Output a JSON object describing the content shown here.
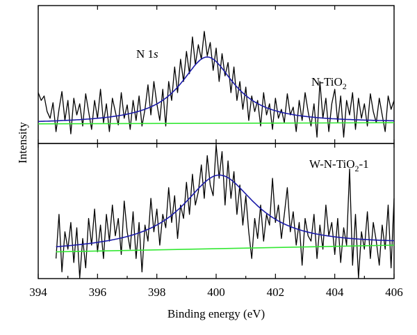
{
  "chart_data": {
    "type": "line",
    "xlabel": "Binding energy (eV)",
    "ylabel": "Intensity",
    "xlim": [
      394,
      406
    ],
    "x_ticks": [
      "394",
      "396",
      "398",
      "400",
      "402",
      "404",
      "406"
    ],
    "x_tick_values": [
      394,
      396,
      398,
      400,
      402,
      404,
      406
    ],
    "colors": {
      "raw": "#000000",
      "fit": "#1a1aa8",
      "baseline": "#33e833"
    },
    "panels": [
      {
        "label_main": "N-TiO",
        "label_sub": "2",
        "label_tail": "",
        "peak_label_main": "N 1",
        "peak_label_italic": "s",
        "ylim": [
          0,
          1
        ],
        "peak": {
          "center": 399.7,
          "fwhm": 2.2,
          "amplitude": 0.595
        },
        "baseline": {
          "x": [
            394,
            406
          ],
          "y": [
            0.17,
            0.18
          ]
        },
        "raw": {
          "x": [
            394.0,
            394.1,
            394.2,
            394.3,
            394.4,
            394.5,
            394.6,
            394.7,
            394.8,
            394.9,
            395.0,
            395.1,
            395.2,
            395.3,
            395.4,
            395.5,
            395.6,
            395.7,
            395.8,
            395.9,
            396.0,
            396.1,
            396.2,
            396.3,
            396.4,
            396.5,
            396.6,
            396.7,
            396.8,
            396.9,
            397.0,
            397.1,
            397.2,
            397.3,
            397.4,
            397.5,
            397.6,
            397.7,
            397.8,
            397.9,
            398.0,
            398.1,
            398.2,
            398.3,
            398.4,
            398.5,
            398.6,
            398.7,
            398.8,
            398.9,
            399.0,
            399.1,
            399.2,
            399.3,
            399.4,
            399.5,
            399.6,
            399.7,
            399.8,
            399.9,
            400.0,
            400.1,
            400.2,
            400.3,
            400.4,
            400.5,
            400.6,
            400.7,
            400.8,
            400.9,
            401.0,
            401.1,
            401.2,
            401.3,
            401.4,
            401.5,
            401.6,
            401.7,
            401.8,
            401.9,
            402.0,
            402.1,
            402.2,
            402.3,
            402.4,
            402.5,
            402.6,
            402.7,
            402.8,
            402.9,
            403.0,
            403.1,
            403.2,
            403.3,
            403.4,
            403.5,
            403.6,
            403.7,
            403.8,
            403.9,
            404.0,
            404.1,
            404.2,
            404.3,
            404.4,
            404.5,
            404.6,
            404.7,
            404.8,
            404.9,
            405.0,
            405.1,
            405.2,
            405.3,
            405.4,
            405.5,
            405.6,
            405.7,
            405.8,
            405.9,
            406.0
          ],
          "y": [
            0.45,
            0.38,
            0.42,
            0.28,
            0.22,
            0.36,
            0.1,
            0.3,
            0.46,
            0.2,
            0.38,
            0.08,
            0.4,
            0.25,
            0.35,
            0.15,
            0.44,
            0.28,
            0.12,
            0.38,
            0.22,
            0.48,
            0.18,
            0.35,
            0.1,
            0.4,
            0.28,
            0.16,
            0.45,
            0.22,
            0.34,
            0.12,
            0.38,
            0.2,
            0.42,
            0.15,
            0.3,
            0.52,
            0.25,
            0.55,
            0.35,
            0.2,
            0.48,
            0.15,
            0.55,
            0.38,
            0.68,
            0.45,
            0.75,
            0.55,
            0.82,
            0.62,
            0.95,
            0.7,
            0.88,
            0.75,
            1.0,
            0.78,
            0.9,
            0.65,
            0.85,
            0.55,
            0.8,
            0.6,
            0.72,
            0.45,
            0.68,
            0.38,
            0.55,
            0.3,
            0.5,
            0.2,
            0.42,
            0.28,
            0.38,
            0.15,
            0.45,
            0.25,
            0.35,
            0.12,
            0.4,
            0.22,
            0.3,
            0.18,
            0.44,
            0.25,
            0.32,
            0.1,
            0.38,
            0.2,
            0.45,
            0.28,
            0.15,
            0.35,
            0.05,
            0.55,
            0.22,
            0.4,
            0.1,
            0.35,
            0.48,
            0.18,
            0.42,
            0.05,
            0.38,
            0.25,
            0.45,
            0.12,
            0.4,
            0.22,
            0.35,
            0.15,
            0.44,
            0.28,
            0.18,
            0.4,
            0.25,
            0.1,
            0.42,
            0.3,
            0.38
          ]
        }
      },
      {
        "label_main": "W-N-TiO",
        "label_sub": "2",
        "label_tail": "-1",
        "peak_label_main": "",
        "peak_label_italic": "",
        "ylim": [
          0,
          1
        ],
        "peak": {
          "center": 400.1,
          "fwhm": 3.0,
          "amplitude": 0.55
        },
        "baseline": {
          "x": [
            394.6,
            406
          ],
          "y": [
            0.2,
            0.25
          ]
        },
        "raw": {
          "x": [
            394.6,
            394.7,
            394.8,
            394.9,
            395.0,
            395.1,
            395.2,
            395.3,
            395.4,
            395.5,
            395.6,
            395.7,
            395.8,
            395.9,
            396.0,
            396.1,
            396.2,
            396.3,
            396.4,
            396.5,
            396.6,
            396.7,
            396.8,
            396.9,
            397.0,
            397.1,
            397.2,
            397.3,
            397.4,
            397.5,
            397.6,
            397.7,
            397.8,
            397.9,
            398.0,
            398.1,
            398.2,
            398.3,
            398.4,
            398.5,
            398.6,
            398.7,
            398.8,
            398.9,
            399.0,
            399.1,
            399.2,
            399.3,
            399.4,
            399.5,
            399.6,
            399.7,
            399.8,
            399.9,
            400.0,
            400.1,
            400.2,
            400.3,
            400.4,
            400.5,
            400.6,
            400.7,
            400.8,
            400.9,
            401.0,
            401.1,
            401.2,
            401.3,
            401.4,
            401.5,
            401.6,
            401.7,
            401.8,
            401.9,
            402.0,
            402.1,
            402.2,
            402.3,
            402.4,
            402.5,
            402.6,
            402.7,
            402.8,
            402.9,
            403.0,
            403.1,
            403.2,
            403.3,
            403.4,
            403.5,
            403.6,
            403.7,
            403.8,
            403.9,
            404.0,
            404.1,
            404.2,
            404.3,
            404.4,
            404.5,
            404.6,
            404.7,
            404.8,
            404.9,
            405.0,
            405.1,
            405.2,
            405.3,
            405.4,
            405.5,
            405.6,
            405.7,
            405.8,
            405.9,
            406.0
          ],
          "y": [
            0.15,
            0.48,
            0.05,
            0.35,
            0.22,
            0.42,
            0.12,
            0.38,
            0.0,
            0.3,
            0.08,
            0.45,
            0.25,
            0.52,
            0.2,
            0.4,
            0.15,
            0.48,
            0.28,
            0.55,
            0.32,
            0.45,
            0.18,
            0.58,
            0.35,
            0.22,
            0.5,
            0.15,
            0.42,
            0.05,
            0.4,
            0.28,
            0.6,
            0.35,
            0.52,
            0.25,
            0.48,
            0.38,
            0.68,
            0.42,
            0.62,
            0.3,
            0.55,
            0.45,
            0.72,
            0.48,
            0.78,
            0.55,
            0.65,
            0.85,
            0.6,
            0.92,
            0.7,
            0.62,
            1.0,
            0.75,
            0.95,
            0.55,
            0.88,
            0.6,
            0.8,
            0.48,
            0.7,
            0.4,
            0.62,
            0.35,
            0.15,
            0.45,
            0.3,
            0.55,
            0.28,
            0.48,
            0.4,
            0.75,
            0.42,
            0.55,
            0.3,
            0.48,
            0.68,
            0.35,
            0.5,
            0.25,
            0.42,
            0.1,
            0.45,
            0.32,
            0.28,
            0.48,
            0.15,
            0.4,
            0.22,
            0.55,
            0.32,
            0.42,
            0.18,
            0.45,
            0.12,
            0.38,
            0.25,
            0.82,
            0.1,
            0.48,
            0.0,
            0.35,
            0.22,
            0.5,
            0.15,
            0.42,
            0.28,
            0.1,
            0.4,
            0.22,
            0.55,
            0.08,
            0.6
          ]
        }
      }
    ]
  }
}
